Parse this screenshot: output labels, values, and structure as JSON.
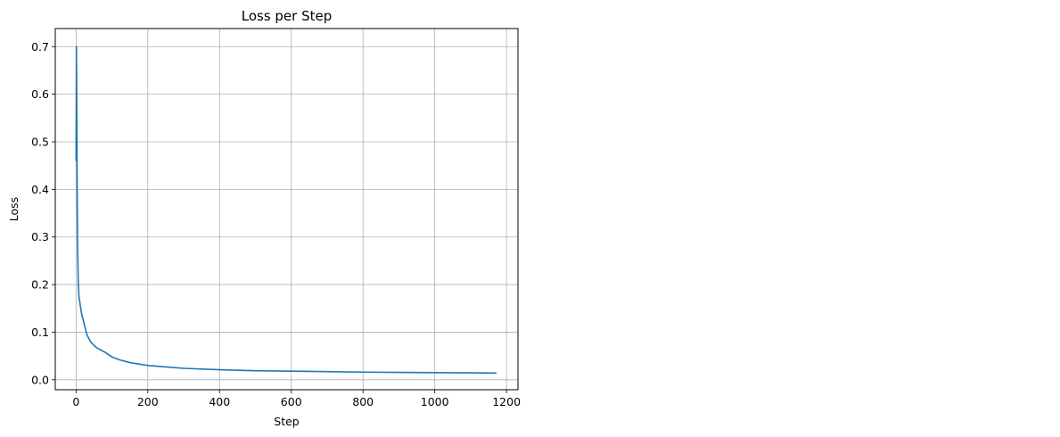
{
  "chart_data": {
    "type": "line",
    "title": "Loss per Step",
    "xlabel": "Step",
    "ylabel": "Loss",
    "xlim": [
      -58,
      1232
    ],
    "ylim": [
      -0.021,
      0.738
    ],
    "x_ticks": [
      0,
      200,
      400,
      600,
      800,
      1000,
      1200
    ],
    "y_ticks": [
      0.0,
      0.1,
      0.2,
      0.3,
      0.4,
      0.5,
      0.6,
      0.7
    ],
    "y_tick_labels": [
      "0.0",
      "0.1",
      "0.2",
      "0.3",
      "0.4",
      "0.5",
      "0.6",
      "0.7"
    ],
    "grid": true,
    "line_color": "#1f77b4",
    "grid_color": "#b0b0b0",
    "series": [
      {
        "x": [
          0,
          1,
          2,
          3,
          4,
          5,
          6,
          7,
          8,
          10,
          12,
          15,
          20,
          25,
          30,
          40,
          50,
          60,
          70,
          80,
          100,
          120,
          150,
          200,
          250,
          300,
          400,
          500,
          600,
          700,
          800,
          900,
          1000,
          1100,
          1172
        ],
        "y": [
          0.46,
          0.7,
          0.55,
          0.4,
          0.3,
          0.25,
          0.21,
          0.19,
          0.175,
          0.165,
          0.155,
          0.14,
          0.125,
          0.11,
          0.095,
          0.08,
          0.072,
          0.066,
          0.062,
          0.058,
          0.048,
          0.042,
          0.036,
          0.03,
          0.027,
          0.024,
          0.021,
          0.019,
          0.018,
          0.017,
          0.016,
          0.0155,
          0.015,
          0.0145,
          0.014
        ]
      }
    ]
  }
}
